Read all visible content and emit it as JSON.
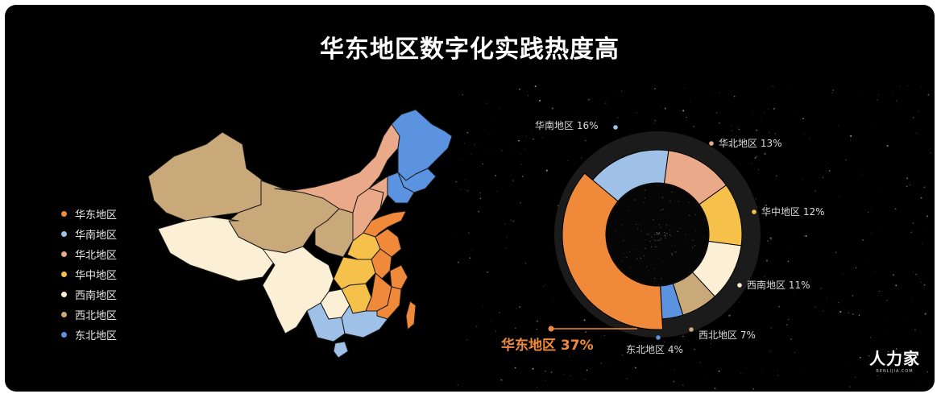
{
  "title": "华东地区数字化实践热度高",
  "logo": {
    "name": "人力家",
    "sub": "RENLIJIA.COM"
  },
  "legend": [
    {
      "label": "华东地区",
      "color": "#f08a3a"
    },
    {
      "label": "华南地区",
      "color": "#9fc1e8"
    },
    {
      "label": "华北地区",
      "color": "#eaa988"
    },
    {
      "label": "华中地区",
      "color": "#f5c14a"
    },
    {
      "label": "西南地区",
      "color": "#fbf0d6"
    },
    {
      "label": "西北地区",
      "color": "#c9a87a"
    },
    {
      "label": "东北地区",
      "color": "#5b93e0"
    }
  ],
  "chart_data": {
    "type": "pie",
    "variant": "donut",
    "slices": [
      {
        "label": "华东地区",
        "value": 37,
        "display": "37%",
        "color": "#f08a3a",
        "highlight": true
      },
      {
        "label": "华南地区",
        "value": 16,
        "display": "16%",
        "color": "#9fc1e8"
      },
      {
        "label": "华北地区",
        "value": 13,
        "display": "13%",
        "color": "#eaa988"
      },
      {
        "label": "华中地区",
        "value": 12,
        "display": "12%",
        "color": "#f5c14a"
      },
      {
        "label": "西南地区",
        "value": 11,
        "display": "11%",
        "color": "#fbf0d6"
      },
      {
        "label": "西北地区",
        "value": 7,
        "display": "7%",
        "color": "#c9a87a"
      },
      {
        "label": "东北地区",
        "value": 4,
        "display": "4%",
        "color": "#5b93e0"
      }
    ]
  }
}
